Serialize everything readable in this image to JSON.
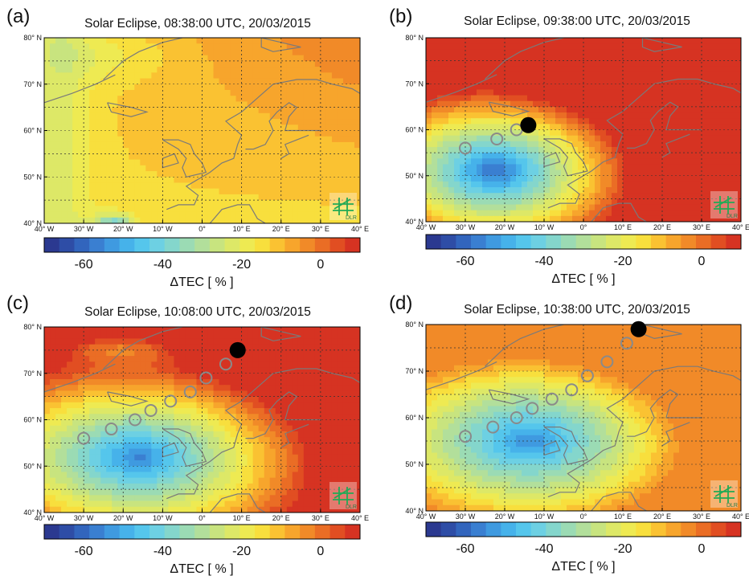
{
  "colors": {
    "scale": [
      "#2b3990",
      "#2e4da6",
      "#3265bd",
      "#3a7fd1",
      "#3f9ae0",
      "#46b2ea",
      "#55c6ec",
      "#6dd0e3",
      "#84d6cc",
      "#9bdbb4",
      "#b2df9b",
      "#c8e47f",
      "#dde867",
      "#eeea52",
      "#f8df3d",
      "#fac232",
      "#f7a52c",
      "#f18a28",
      "#ea6d25",
      "#e14e22",
      "#d63322"
    ],
    "coast": "#7a7a7a",
    "grid": "#333333",
    "track_circle": "#8a8a8a",
    "moon_shadow": "#000000",
    "logo": "#22aa55"
  },
  "panels": [
    {
      "label": "(a)",
      "title": "Solar Eclipse, 08:38:00 UTC, 20/03/2015",
      "colorbar_label": "ΔTEC [ % ]"
    },
    {
      "label": "(b)",
      "title": "Solar Eclipse, 09:38:00 UTC, 20/03/2015",
      "colorbar_label": "ΔTEC [ % ]"
    },
    {
      "label": "(c)",
      "title": "Solar Eclipse, 10:08:00 UTC, 20/03/2015",
      "colorbar_label": "ΔTEC [ % ]"
    },
    {
      "label": "(d)",
      "title": "Solar Eclipse, 10:38:00 UTC, 20/03/2015",
      "colorbar_label": "ΔTEC [ % ]"
    }
  ],
  "lon_ticks": [
    "40° W",
    "30° W",
    "20° W",
    "10° W",
    "0°",
    "10° E",
    "20° E",
    "30° E",
    "40° E"
  ],
  "lat_ticks": [
    "40° N",
    "50° N",
    "60° N",
    "70° N",
    "80° N"
  ],
  "colorbar_ticks": [
    "-60",
    "-40",
    "-20",
    "0"
  ],
  "colorbar_range": [
    -70,
    10
  ],
  "map_extent": {
    "lon": [
      -40,
      40
    ],
    "lat": [
      40,
      80
    ]
  },
  "logo_text": "DLR",
  "eclipse_track": {
    "panel_b": {
      "circles": [
        [
          -30,
          56
        ],
        [
          -22,
          58
        ],
        [
          -17,
          60
        ]
      ],
      "moon": [
        -14,
        61
      ]
    },
    "panel_c": {
      "circles": [
        [
          -30,
          56
        ],
        [
          -23,
          58
        ],
        [
          -17,
          60
        ],
        [
          -13,
          62
        ],
        [
          -8,
          64
        ],
        [
          -3,
          66
        ],
        [
          1,
          69
        ],
        [
          6,
          72
        ]
      ],
      "moon": [
        9,
        75
      ]
    },
    "panel_d": {
      "circles": [
        [
          -30,
          56
        ],
        [
          -23,
          58
        ],
        [
          -17,
          60
        ],
        [
          -13,
          62
        ],
        [
          -8,
          64
        ],
        [
          -3,
          66
        ],
        [
          1,
          69
        ],
        [
          6,
          72
        ],
        [
          11,
          76
        ]
      ],
      "moon": [
        14,
        79
      ]
    }
  }
}
